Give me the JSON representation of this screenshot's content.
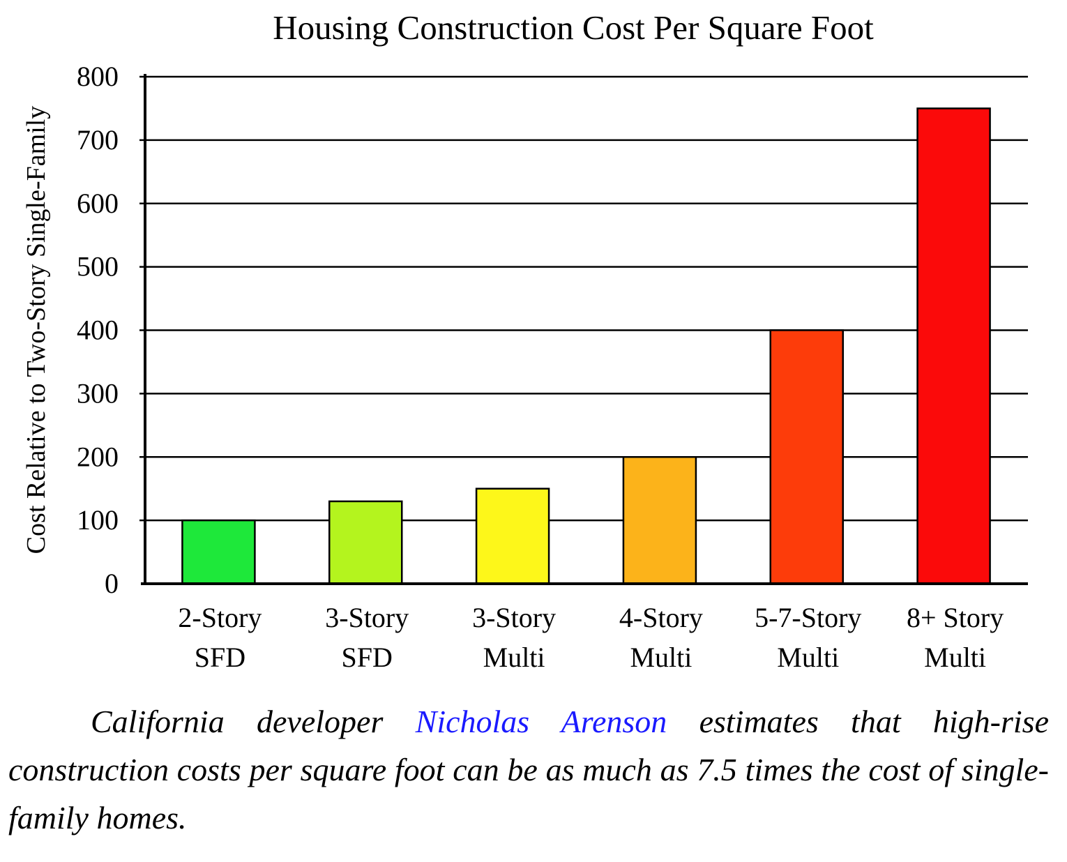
{
  "chart_data": {
    "type": "bar",
    "title": "Housing Construction Cost Per Square Foot",
    "ylabel": "Cost Relative to Two-Story Single-Family",
    "xlabel": "",
    "categories": [
      [
        "2-Story",
        "SFD"
      ],
      [
        "3-Story",
        "SFD"
      ],
      [
        "3-Story",
        "Multi"
      ],
      [
        "4-Story",
        "Multi"
      ],
      [
        "5-7-Story",
        "Multi"
      ],
      [
        "8+ Story",
        "Multi"
      ]
    ],
    "values": [
      100,
      130,
      150,
      200,
      400,
      750
    ],
    "bar_colors": [
      "#1ee83a",
      "#b4f41e",
      "#fdf71a",
      "#fcb31a",
      "#fd3c0a",
      "#fb0a0a"
    ],
    "ylim": [
      0,
      800
    ],
    "yticks": [
      0,
      100,
      200,
      300,
      400,
      500,
      600,
      700,
      800
    ],
    "grid": true,
    "legend": "none"
  },
  "caption": {
    "before_link": "California developer ",
    "link_text": "Nicholas Arenson",
    "after_link": " estimates that high-rise construction costs per square foot can be as much as 7.5 times the cost of single-family homes.",
    "link_color": "#1a1aff"
  }
}
